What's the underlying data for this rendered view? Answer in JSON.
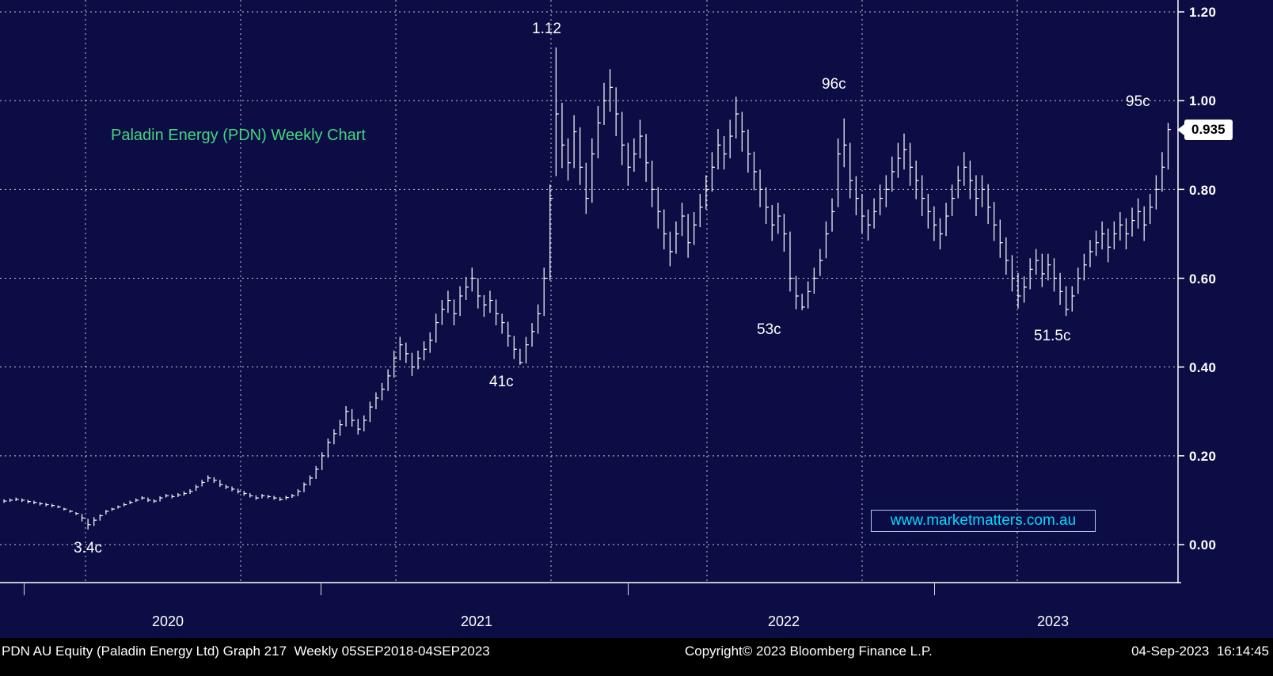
{
  "chart_data": {
    "type": "bar",
    "subtype": "weekly-hlc-price-bars",
    "title": "Paladin Energy (PDN) Weekly Chart",
    "instrument": "PDN AU Equity",
    "frequency": "Weekly",
    "period": "05SEP2018-04SEP2023",
    "ylim": [
      0.0,
      1.2
    ],
    "grid": "dotted",
    "legend": "none",
    "y_tick_labels": [
      "1.20",
      "1.00",
      "0.80",
      "0.60",
      "0.40",
      "0.20",
      "0.00"
    ],
    "x_tick_labels": [
      "2020",
      "2021",
      "2022",
      "2023"
    ],
    "last_price": "0.935",
    "watermark": "www.marketmatters.com.au",
    "annotations": [
      {
        "text": "1.12"
      },
      {
        "text": "96c"
      },
      {
        "text": "95c"
      },
      {
        "text": "53c"
      },
      {
        "text": "51.5c"
      },
      {
        "text": "41c"
      },
      {
        "text": "3.4c"
      }
    ],
    "colors": {
      "background": "#0d0d45",
      "bars": "#ffffff",
      "title": "#42d77d",
      "watermark": "#00dcff",
      "grid": "#ffffff",
      "axis_text": "#ffffff",
      "last_price_bg": "#ffffff",
      "last_price_text": "#000000",
      "footer_bg": "#000000",
      "footer_text": "#ffffff"
    },
    "closes": [
      0.098,
      0.1,
      0.102,
      0.1,
      0.097,
      0.095,
      0.092,
      0.09,
      0.088,
      0.085,
      0.08,
      0.075,
      0.07,
      0.06,
      0.045,
      0.055,
      0.065,
      0.075,
      0.08,
      0.085,
      0.09,
      0.095,
      0.1,
      0.105,
      0.1,
      0.098,
      0.105,
      0.11,
      0.108,
      0.112,
      0.115,
      0.12,
      0.13,
      0.14,
      0.15,
      0.145,
      0.135,
      0.13,
      0.125,
      0.12,
      0.115,
      0.11,
      0.105,
      0.11,
      0.108,
      0.105,
      0.102,
      0.106,
      0.11,
      0.12,
      0.135,
      0.15,
      0.17,
      0.2,
      0.23,
      0.25,
      0.27,
      0.3,
      0.28,
      0.26,
      0.28,
      0.31,
      0.33,
      0.35,
      0.38,
      0.42,
      0.45,
      0.43,
      0.4,
      0.42,
      0.44,
      0.46,
      0.5,
      0.53,
      0.55,
      0.52,
      0.56,
      0.58,
      0.6,
      0.56,
      0.54,
      0.55,
      0.52,
      0.5,
      0.47,
      0.44,
      0.41,
      0.45,
      0.48,
      0.52,
      0.6,
      0.78,
      0.97,
      0.9,
      0.86,
      0.93,
      0.85,
      0.78,
      0.88,
      0.95,
      1.0,
      1.03,
      0.97,
      0.9,
      0.85,
      0.88,
      0.92,
      0.86,
      0.8,
      0.75,
      0.7,
      0.66,
      0.7,
      0.74,
      0.68,
      0.72,
      0.76,
      0.8,
      0.85,
      0.9,
      0.88,
      0.92,
      0.97,
      0.93,
      0.88,
      0.84,
      0.8,
      0.76,
      0.72,
      0.74,
      0.7,
      0.6,
      0.56,
      0.535,
      0.57,
      0.6,
      0.64,
      0.7,
      0.75,
      0.88,
      0.9,
      0.82,
      0.78,
      0.74,
      0.72,
      0.75,
      0.78,
      0.8,
      0.84,
      0.87,
      0.89,
      0.85,
      0.82,
      0.78,
      0.75,
      0.72,
      0.7,
      0.74,
      0.78,
      0.82,
      0.85,
      0.82,
      0.78,
      0.8,
      0.76,
      0.72,
      0.68,
      0.64,
      0.6,
      0.56,
      0.58,
      0.62,
      0.64,
      0.61,
      0.63,
      0.6,
      0.57,
      0.53,
      0.56,
      0.6,
      0.63,
      0.66,
      0.68,
      0.7,
      0.67,
      0.7,
      0.72,
      0.7,
      0.73,
      0.75,
      0.72,
      0.76,
      0.8,
      0.85,
      0.935
    ],
    "highs": [
      0.102,
      0.104,
      0.106,
      0.104,
      0.101,
      0.099,
      0.096,
      0.094,
      0.092,
      0.088,
      0.083,
      0.078,
      0.073,
      0.069,
      0.058,
      0.062,
      0.068,
      0.078,
      0.083,
      0.088,
      0.094,
      0.099,
      0.104,
      0.109,
      0.106,
      0.102,
      0.109,
      0.114,
      0.113,
      0.116,
      0.12,
      0.125,
      0.135,
      0.146,
      0.156,
      0.152,
      0.146,
      0.135,
      0.131,
      0.126,
      0.121,
      0.116,
      0.111,
      0.114,
      0.112,
      0.11,
      0.107,
      0.11,
      0.114,
      0.125,
      0.14,
      0.156,
      0.177,
      0.208,
      0.239,
      0.26,
      0.281,
      0.312,
      0.305,
      0.283,
      0.291,
      0.322,
      0.343,
      0.364,
      0.395,
      0.437,
      0.468,
      0.455,
      0.432,
      0.437,
      0.458,
      0.478,
      0.52,
      0.551,
      0.572,
      0.552,
      0.582,
      0.603,
      0.624,
      0.6,
      0.562,
      0.572,
      0.552,
      0.52,
      0.502,
      0.47,
      0.441,
      0.468,
      0.499,
      0.541,
      0.624,
      0.811,
      1.12,
      0.995,
      0.915,
      0.967,
      0.94,
      0.86,
      0.915,
      0.988,
      1.04,
      1.071,
      1.03,
      0.975,
      0.905,
      0.915,
      0.957,
      0.925,
      0.865,
      0.805,
      0.755,
      0.705,
      0.728,
      0.77,
      0.745,
      0.749,
      0.79,
      0.832,
      0.884,
      0.936,
      0.92,
      0.957,
      1.009,
      0.975,
      0.935,
      0.885,
      0.845,
      0.805,
      0.765,
      0.77,
      0.745,
      0.705,
      0.605,
      0.565,
      0.593,
      0.624,
      0.666,
      0.728,
      0.78,
      0.915,
      0.96,
      0.905,
      0.83,
      0.79,
      0.755,
      0.78,
      0.811,
      0.832,
      0.874,
      0.905,
      0.926,
      0.905,
      0.865,
      0.832,
      0.79,
      0.762,
      0.735,
      0.77,
      0.811,
      0.853,
      0.884,
      0.865,
      0.832,
      0.832,
      0.812,
      0.772,
      0.732,
      0.692,
      0.652,
      0.612,
      0.604,
      0.645,
      0.666,
      0.655,
      0.655,
      0.645,
      0.612,
      0.582,
      0.582,
      0.624,
      0.655,
      0.686,
      0.707,
      0.728,
      0.712,
      0.728,
      0.749,
      0.735,
      0.759,
      0.78,
      0.762,
      0.79,
      0.832,
      0.884,
      0.95
    ],
    "lows": [
      0.094,
      0.096,
      0.098,
      0.096,
      0.093,
      0.091,
      0.088,
      0.086,
      0.084,
      0.082,
      0.077,
      0.072,
      0.067,
      0.052,
      0.034,
      0.042,
      0.054,
      0.068,
      0.076,
      0.081,
      0.086,
      0.091,
      0.096,
      0.101,
      0.096,
      0.094,
      0.097,
      0.106,
      0.104,
      0.107,
      0.11,
      0.114,
      0.121,
      0.131,
      0.141,
      0.139,
      0.13,
      0.125,
      0.12,
      0.115,
      0.11,
      0.106,
      0.101,
      0.104,
      0.104,
      0.101,
      0.098,
      0.101,
      0.105,
      0.109,
      0.118,
      0.133,
      0.148,
      0.168,
      0.196,
      0.226,
      0.245,
      0.266,
      0.266,
      0.248,
      0.255,
      0.276,
      0.305,
      0.325,
      0.346,
      0.376,
      0.415,
      0.409,
      0.38,
      0.395,
      0.415,
      0.432,
      0.455,
      0.495,
      0.522,
      0.494,
      0.515,
      0.551,
      0.57,
      0.532,
      0.513,
      0.522,
      0.494,
      0.475,
      0.446,
      0.418,
      0.405,
      0.408,
      0.446,
      0.475,
      0.515,
      0.595,
      0.83,
      0.848,
      0.82,
      0.848,
      0.81,
      0.745,
      0.77,
      0.87,
      0.945,
      0.975,
      0.92,
      0.855,
      0.808,
      0.84,
      0.87,
      0.817,
      0.76,
      0.712,
      0.665,
      0.627,
      0.655,
      0.695,
      0.646,
      0.675,
      0.715,
      0.755,
      0.795,
      0.845,
      0.845,
      0.87,
      0.915,
      0.885,
      0.838,
      0.798,
      0.76,
      0.722,
      0.684,
      0.7,
      0.66,
      0.57,
      0.53,
      0.528,
      0.532,
      0.565,
      0.605,
      0.645,
      0.705,
      0.76,
      0.85,
      0.78,
      0.742,
      0.702,
      0.685,
      0.712,
      0.742,
      0.76,
      0.795,
      0.826,
      0.845,
      0.808,
      0.778,
      0.74,
      0.712,
      0.684,
      0.665,
      0.695,
      0.74,
      0.78,
      0.808,
      0.778,
      0.74,
      0.76,
      0.722,
      0.684,
      0.646,
      0.608,
      0.57,
      0.532,
      0.545,
      0.575,
      0.608,
      0.58,
      0.595,
      0.57,
      0.54,
      0.515,
      0.525,
      0.565,
      0.595,
      0.625,
      0.65,
      0.665,
      0.636,
      0.665,
      0.685,
      0.665,
      0.694,
      0.712,
      0.684,
      0.722,
      0.755,
      0.795,
      0.845
    ]
  },
  "footer": {
    "left": "PDN AU Equity (Paladin Energy Ltd) Graph 217  Weekly 05SEP2018-04SEP2023",
    "copyright": "Copyright© 2023 Bloomberg Finance L.P.",
    "datetime": "04-Sep-2023  16:14:45"
  }
}
